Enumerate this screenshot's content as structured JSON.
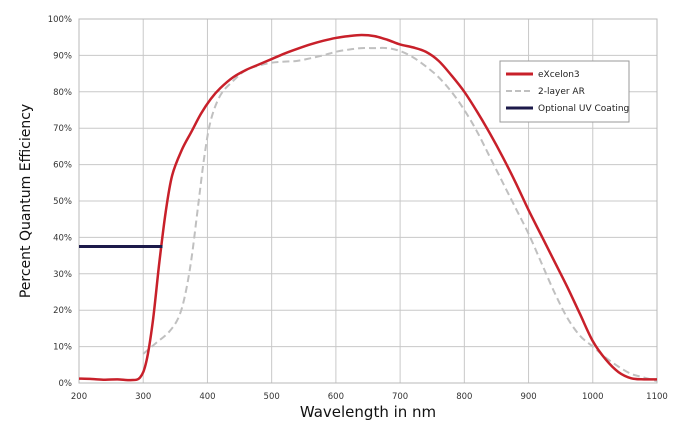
{
  "chart_data": {
    "type": "line",
    "title": "",
    "xlabel": "Wavelength in nm",
    "ylabel": "Percent Quantum Efficiency",
    "xlim": [
      200,
      1100
    ],
    "ylim": [
      0,
      100
    ],
    "x_ticks": [
      "200",
      "300",
      "400",
      "500",
      "600",
      "700",
      "800",
      "900",
      "1000",
      "1100"
    ],
    "y_ticks": [
      "0%",
      "10%",
      "20%",
      "30%",
      "40%",
      "50%",
      "60%",
      "70%",
      "80%",
      "90%",
      "100%"
    ],
    "grid": true,
    "legend_position": "top-right",
    "series": [
      {
        "name": "eXcelon3",
        "color": "#c8202a",
        "style": "solid",
        "points": [
          [
            200,
            1.2
          ],
          [
            220,
            1.1
          ],
          [
            240,
            0.9
          ],
          [
            260,
            1.0
          ],
          [
            280,
            0.8
          ],
          [
            295,
            1.5
          ],
          [
            305,
            6
          ],
          [
            315,
            17
          ],
          [
            325,
            33
          ],
          [
            335,
            47
          ],
          [
            345,
            57
          ],
          [
            360,
            64
          ],
          [
            375,
            69
          ],
          [
            390,
            74
          ],
          [
            405,
            78
          ],
          [
            420,
            81
          ],
          [
            440,
            84
          ],
          [
            460,
            86
          ],
          [
            480,
            87.5
          ],
          [
            500,
            89
          ],
          [
            520,
            90.5
          ],
          [
            540,
            91.8
          ],
          [
            560,
            93
          ],
          [
            580,
            94
          ],
          [
            600,
            94.8
          ],
          [
            620,
            95.3
          ],
          [
            640,
            95.6
          ],
          [
            660,
            95.3
          ],
          [
            680,
            94.3
          ],
          [
            700,
            93
          ],
          [
            720,
            92.2
          ],
          [
            740,
            91
          ],
          [
            760,
            88.5
          ],
          [
            780,
            84.5
          ],
          [
            800,
            80
          ],
          [
            820,
            74.5
          ],
          [
            840,
            68.5
          ],
          [
            860,
            62
          ],
          [
            880,
            55
          ],
          [
            900,
            47.5
          ],
          [
            920,
            40.5
          ],
          [
            940,
            33.5
          ],
          [
            960,
            26.5
          ],
          [
            980,
            19
          ],
          [
            1000,
            11.5
          ],
          [
            1020,
            6.5
          ],
          [
            1040,
            3
          ],
          [
            1060,
            1.3
          ],
          [
            1080,
            1.0
          ],
          [
            1100,
            1.0
          ]
        ]
      },
      {
        "name": "2-layer AR",
        "color": "#c0c0c0",
        "style": "dashed",
        "points": [
          [
            300,
            8
          ],
          [
            320,
            11
          ],
          [
            340,
            14
          ],
          [
            355,
            18
          ],
          [
            365,
            24
          ],
          [
            375,
            34
          ],
          [
            385,
            48
          ],
          [
            395,
            62
          ],
          [
            405,
            72
          ],
          [
            420,
            79
          ],
          [
            440,
            83
          ],
          [
            460,
            86
          ],
          [
            480,
            87.2
          ],
          [
            500,
            88
          ],
          [
            520,
            88.3
          ],
          [
            540,
            88.5
          ],
          [
            560,
            89.2
          ],
          [
            580,
            90
          ],
          [
            600,
            91
          ],
          [
            620,
            91.6
          ],
          [
            640,
            92
          ],
          [
            660,
            92
          ],
          [
            680,
            92
          ],
          [
            700,
            91.2
          ],
          [
            720,
            89.5
          ],
          [
            740,
            87
          ],
          [
            760,
            84
          ],
          [
            780,
            80
          ],
          [
            800,
            75
          ],
          [
            820,
            69
          ],
          [
            840,
            62
          ],
          [
            860,
            55
          ],
          [
            880,
            48
          ],
          [
            900,
            41
          ],
          [
            920,
            33
          ],
          [
            940,
            25
          ],
          [
            960,
            18
          ],
          [
            980,
            13
          ],
          [
            1000,
            10
          ],
          [
            1020,
            7
          ],
          [
            1040,
            4.5
          ],
          [
            1060,
            2.5
          ],
          [
            1080,
            1.5
          ],
          [
            1100,
            0.5
          ]
        ]
      },
      {
        "name": "Optional UV Coating",
        "color": "#1c1a4a",
        "style": "solid",
        "points": [
          [
            200,
            37.5
          ],
          [
            330,
            37.5
          ]
        ]
      }
    ]
  }
}
